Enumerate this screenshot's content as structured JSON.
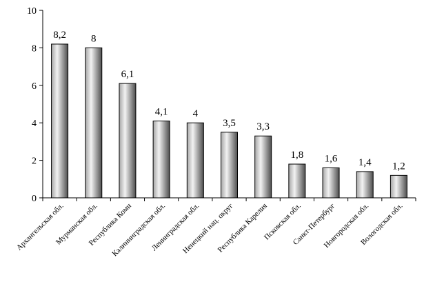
{
  "chart_data": {
    "type": "bar",
    "categories": [
      "Архангельская обл.",
      "Мурманская обл.",
      "Республика Коми",
      "Калининградская обл.",
      "Ленинградская обл.",
      "Ненецкий нац. округ",
      "Республика Карелия",
      "Псковская обл.",
      "Санкт-Петербург",
      "Новгородская обл.",
      "Вологодская обл."
    ],
    "values": [
      8.2,
      8,
      6.1,
      4.1,
      4,
      3.5,
      3.3,
      1.8,
      1.6,
      1.4,
      1.2
    ],
    "data_labels": [
      "8,2",
      "8",
      "6,1",
      "4,1",
      "4",
      "3,5",
      "3,3",
      "1,8",
      "1,6",
      "1,4",
      "1,2"
    ],
    "title": "",
    "xlabel": "",
    "ylabel": "",
    "ylim": [
      0,
      10
    ],
    "yticks": [
      0,
      2,
      4,
      6,
      8,
      10
    ],
    "grid": false,
    "bar_colors": {
      "light": "#f2f2f2",
      "mid": "#a6a6a6",
      "dark": "#4d4d4d",
      "outline": "#000000"
    }
  }
}
